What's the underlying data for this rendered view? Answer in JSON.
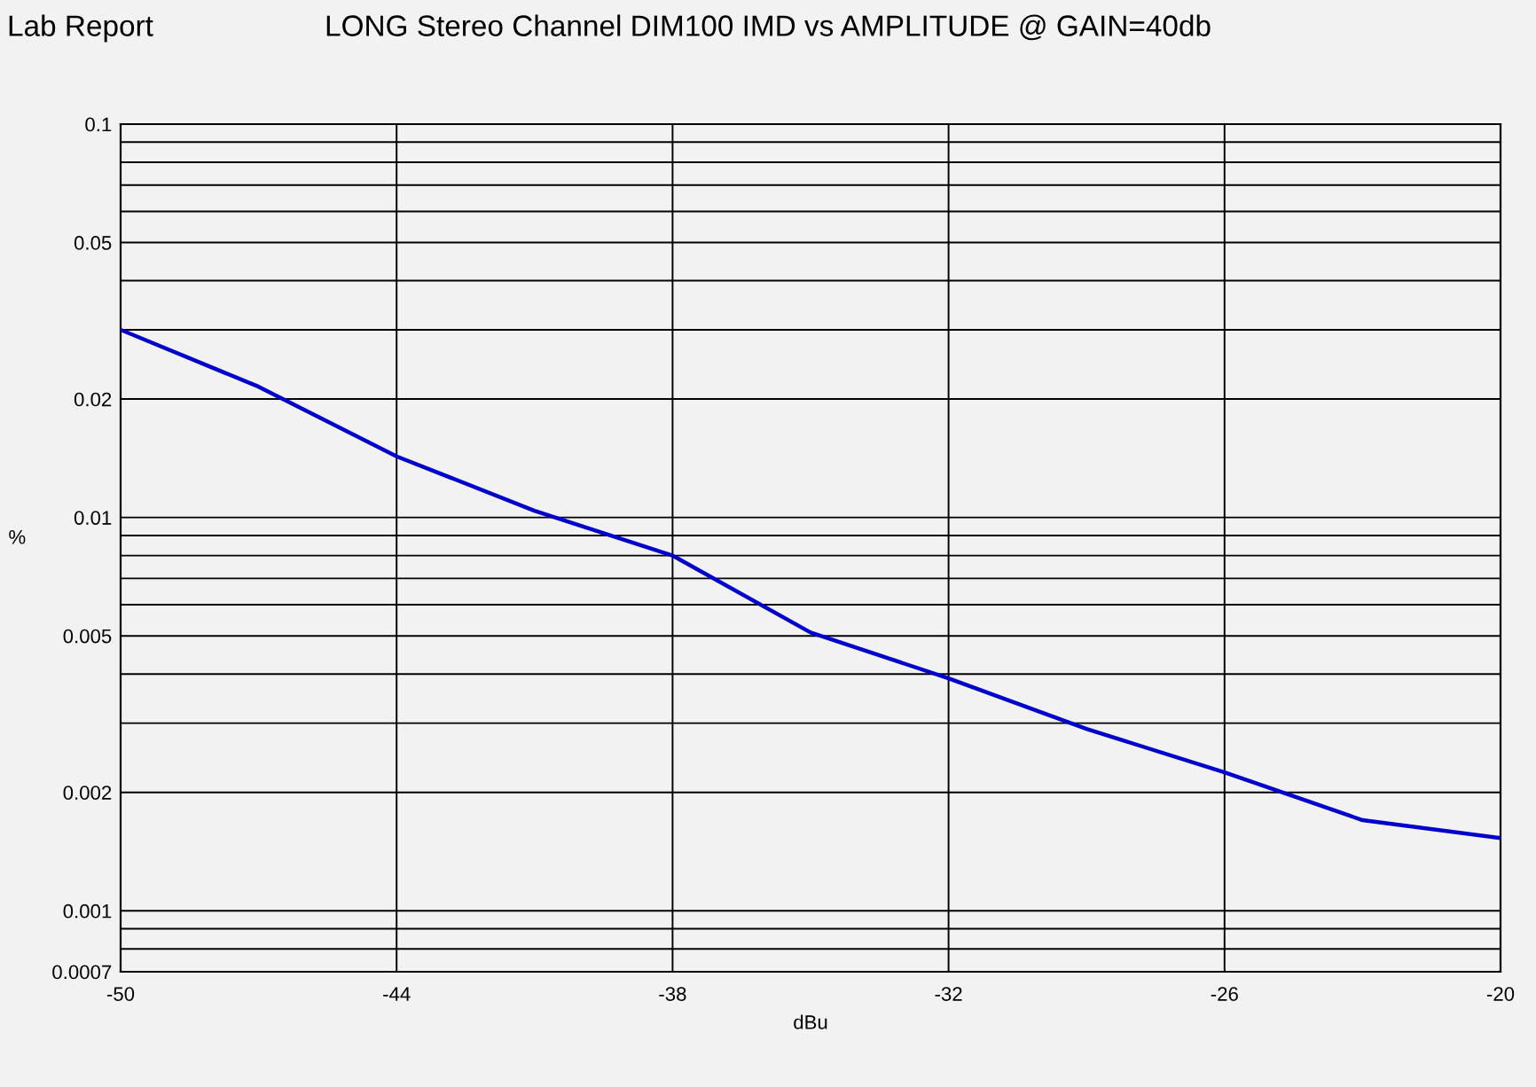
{
  "chart_data": {
    "type": "line",
    "title": "LONG Stereo Channel DIM100 IMD vs AMPLITUDE @ GAIN=40db",
    "annotations": [
      "Lab Report"
    ],
    "xlabel": "dBu",
    "ylabel": "%",
    "x": [
      -50,
      -47,
      -44,
      -41,
      -38,
      -35,
      -32,
      -29,
      -26,
      -23,
      -20
    ],
    "series": [
      {
        "color": "#0000cc",
        "values": [
          0.03,
          0.0215,
          0.0143,
          0.0104,
          0.008,
          0.0051,
          0.0039,
          0.0029,
          0.00225,
          0.0017,
          0.00153
        ]
      }
    ],
    "log": "y",
    "grid": true,
    "marker": "none",
    "line_style": "solid",
    "xlim": [
      -50,
      -20
    ],
    "xticks": [
      -50,
      -44,
      -38,
      -32,
      -26,
      -20
    ],
    "ylim": [
      0.0007,
      0.1
    ],
    "yticks": [
      0.0007,
      {
        "value": 0.0008,
        "label": null
      },
      {
        "value": 0.0009,
        "label": null
      },
      0.001,
      0.002,
      {
        "value": 0.003,
        "label": null
      },
      {
        "value": 0.004,
        "label": null
      },
      0.005,
      {
        "value": 0.006,
        "label": null
      },
      {
        "value": 0.007,
        "label": null
      },
      {
        "value": 0.008,
        "label": null
      },
      {
        "value": 0.009,
        "label": null
      },
      0.01,
      0.02,
      {
        "value": 0.03,
        "label": null
      },
      {
        "value": 0.04,
        "label": null
      },
      0.05,
      {
        "value": 0.06,
        "label": null
      },
      {
        "value": 0.07,
        "label": null
      },
      {
        "value": 0.08,
        "label": null
      },
      {
        "value": 0.09,
        "label": null
      },
      0.1
    ]
  }
}
